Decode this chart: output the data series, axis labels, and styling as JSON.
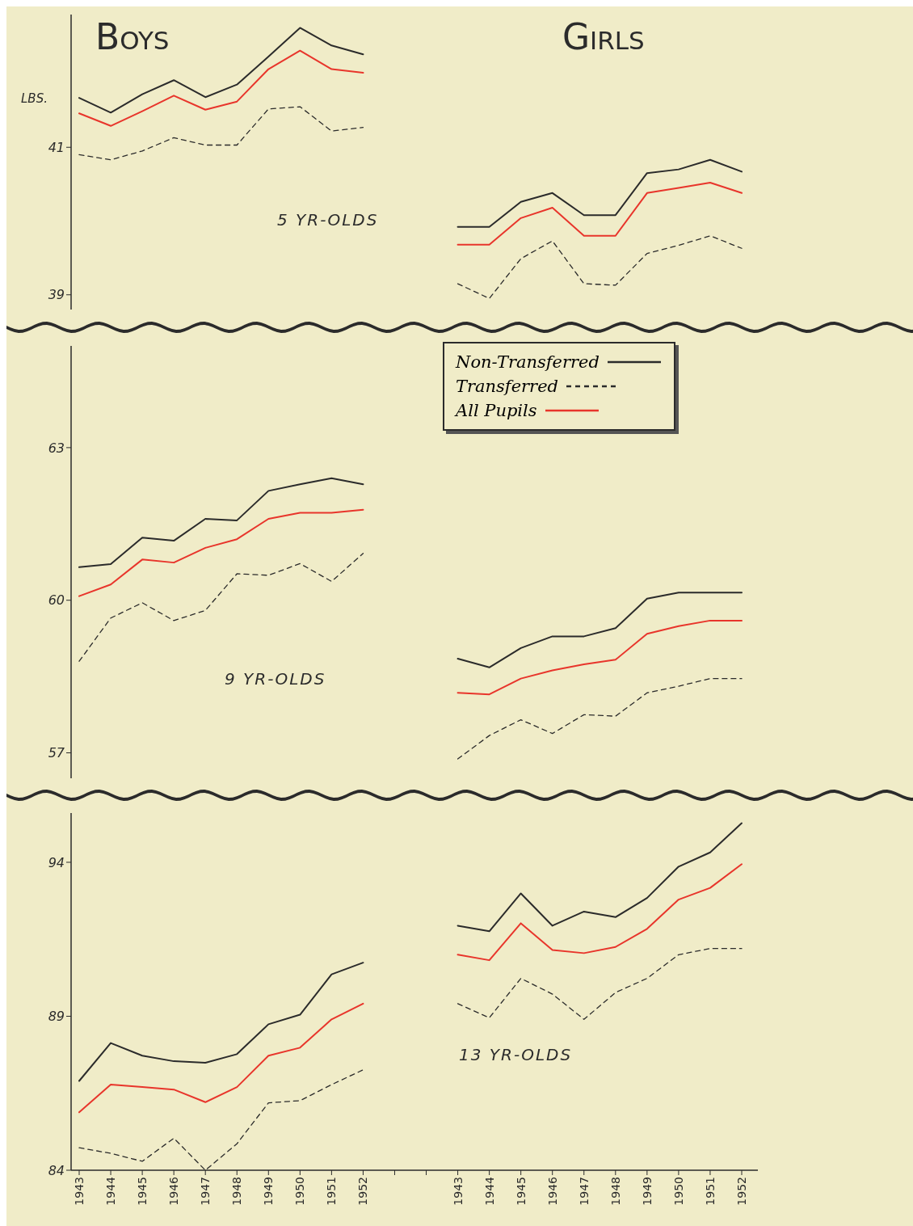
{
  "chart_data": [
    {
      "type": "line",
      "title": "Boys",
      "ylabel": "LBS.",
      "annotations": [
        "Girls",
        "5 YR-OLDS"
      ],
      "categories": [
        "1943",
        "1944",
        "1945",
        "1946",
        "1947",
        "1948",
        "1949",
        "1950",
        "1951",
        "1952",
        null,
        null,
        "1943",
        "1944",
        "1945",
        "1946",
        "1947",
        "1948",
        "1949",
        "1950",
        "1951",
        "1952"
      ],
      "ylim": [
        38.8,
        42.8
      ],
      "yticks": [
        39,
        41
      ],
      "tick_labels": "y",
      "series": [
        {
          "color": "#2b2b2b",
          "line_style": "solid",
          "values": [
            41.67,
            41.47,
            41.72,
            41.91,
            41.68,
            41.85,
            42.23,
            42.62,
            42.38,
            42.26,
            null,
            null,
            null,
            null,
            null,
            null,
            null,
            null,
            null,
            null,
            null,
            null
          ]
        },
        {
          "color": "#2b2b2b",
          "line_style": "dashed",
          "values": [
            40.9,
            40.83,
            40.95,
            41.13,
            41.03,
            41.03,
            41.52,
            41.55,
            41.22,
            41.27,
            null,
            null,
            null,
            null,
            null,
            null,
            null,
            null,
            null,
            null,
            null,
            null
          ]
        },
        {
          "color": "#e8352b",
          "line_style": "solid",
          "values": [
            41.46,
            41.29,
            41.49,
            41.7,
            41.51,
            41.62,
            42.06,
            42.31,
            42.06,
            42.01,
            null,
            null,
            null,
            null,
            null,
            null,
            null,
            null,
            null,
            null,
            null,
            null
          ]
        },
        {
          "color": "#2b2b2b",
          "line_style": "solid",
          "values": [
            null,
            null,
            null,
            null,
            null,
            null,
            null,
            null,
            null,
            null,
            null,
            null,
            39.92,
            39.92,
            40.26,
            40.38,
            40.08,
            40.08,
            40.65,
            40.7,
            40.83,
            40.67
          ]
        },
        {
          "color": "#2b2b2b",
          "line_style": "dashed",
          "values": [
            null,
            null,
            null,
            null,
            null,
            null,
            null,
            null,
            null,
            null,
            null,
            null,
            39.15,
            38.95,
            39.49,
            39.73,
            39.15,
            39.13,
            39.56,
            39.67,
            39.8,
            39.63
          ]
        },
        {
          "color": "#e8352b",
          "line_style": "solid",
          "values": [
            null,
            null,
            null,
            null,
            null,
            null,
            null,
            null,
            null,
            null,
            null,
            null,
            39.68,
            39.68,
            40.04,
            40.18,
            39.8,
            39.8,
            40.38,
            40.45,
            40.52,
            40.38
          ]
        }
      ]
    },
    {
      "type": "line",
      "annotations": [
        "9 YR-OLDS"
      ],
      "categories": [
        "1943",
        "1944",
        "1945",
        "1946",
        "1947",
        "1948",
        "1949",
        "1950",
        "1951",
        "1952",
        null,
        null,
        "1943",
        "1944",
        "1945",
        "1946",
        "1947",
        "1948",
        "1949",
        "1950",
        "1951",
        "1952"
      ],
      "ylim": [
        56.5,
        65
      ],
      "yticks": [
        57,
        60,
        63
      ],
      "tick_labels": "y",
      "legend": "top",
      "series": [
        {
          "name": "Non-Transferred",
          "color": "#2b2b2b",
          "line_style": "solid",
          "values": [
            60.65,
            60.71,
            61.23,
            61.17,
            61.6,
            61.57,
            62.15,
            62.28,
            62.4,
            62.28,
            null,
            null,
            null,
            null,
            null,
            null,
            null,
            null,
            null,
            null,
            null,
            null
          ]
        },
        {
          "name": "Transferred",
          "color": "#2b2b2b",
          "line_style": "dashed",
          "values": [
            58.8,
            59.65,
            59.95,
            59.6,
            59.8,
            60.52,
            60.49,
            60.72,
            60.37,
            60.92,
            null,
            null,
            null,
            null,
            null,
            null,
            null,
            null,
            null,
            null,
            null,
            null
          ]
        },
        {
          "name": "All Pupils",
          "color": "#e8352b",
          "line_style": "solid",
          "values": [
            60.08,
            60.31,
            60.8,
            60.74,
            61.03,
            61.2,
            61.6,
            61.72,
            61.72,
            61.78,
            null,
            null,
            null,
            null,
            null,
            null,
            null,
            null,
            null,
            null,
            null,
            null
          ]
        },
        {
          "color": "#2b2b2b",
          "line_style": "solid",
          "values": [
            null,
            null,
            null,
            null,
            null,
            null,
            null,
            null,
            null,
            null,
            null,
            null,
            58.85,
            58.68,
            59.06,
            59.29,
            59.29,
            59.45,
            60.03,
            60.15,
            60.15,
            60.15
          ]
        },
        {
          "color": "#2b2b2b",
          "line_style": "dashed",
          "values": [
            null,
            null,
            null,
            null,
            null,
            null,
            null,
            null,
            null,
            null,
            null,
            null,
            56.88,
            57.34,
            57.65,
            57.38,
            57.75,
            57.72,
            58.18,
            58.31,
            58.46,
            58.46
          ]
        },
        {
          "color": "#e8352b",
          "line_style": "solid",
          "values": [
            null,
            null,
            null,
            null,
            null,
            null,
            null,
            null,
            null,
            null,
            null,
            null,
            58.18,
            58.15,
            58.46,
            58.62,
            58.74,
            58.83,
            59.34,
            59.49,
            59.6,
            59.6
          ]
        }
      ]
    },
    {
      "type": "line",
      "annotations": [
        "13 YR-OLDS"
      ],
      "categories": [
        "1943",
        "1944",
        "1945",
        "1946",
        "1947",
        "1948",
        "1949",
        "1950",
        "1951",
        "1952",
        null,
        null,
        "1943",
        "1944",
        "1945",
        "1946",
        "1947",
        "1948",
        "1949",
        "1950",
        "1951",
        "1952"
      ],
      "ylim": [
        84,
        95.6
      ],
      "yticks": [
        84,
        89,
        94
      ],
      "series": [
        {
          "color": "#2b2b2b",
          "line_style": "solid",
          "values": [
            86.9,
            88.13,
            87.72,
            87.54,
            87.49,
            87.77,
            88.74,
            89.05,
            90.36,
            90.74,
            null,
            null,
            null,
            null,
            null,
            null,
            null,
            null,
            null,
            null,
            null,
            null
          ]
        },
        {
          "color": "#2b2b2b",
          "line_style": "dashed",
          "values": [
            84.73,
            84.55,
            84.29,
            85.04,
            84.0,
            84.86,
            86.19,
            86.26,
            86.78,
            87.26,
            null,
            null,
            null,
            null,
            null,
            null,
            null,
            null,
            null,
            null,
            null,
            null
          ]
        },
        {
          "color": "#e8352b",
          "line_style": "solid",
          "values": [
            85.88,
            86.78,
            86.7,
            86.62,
            86.21,
            86.7,
            87.72,
            87.98,
            88.9,
            89.41,
            null,
            null,
            null,
            null,
            null,
            null,
            null,
            null,
            null,
            null,
            null,
            null
          ]
        },
        {
          "color": "#2b2b2b",
          "line_style": "solid",
          "values": [
            null,
            null,
            null,
            null,
            null,
            null,
            null,
            null,
            null,
            null,
            null,
            null,
            91.94,
            91.76,
            92.99,
            91.94,
            92.4,
            92.22,
            92.84,
            93.86,
            94.32,
            95.27
          ]
        },
        {
          "color": "#2b2b2b",
          "line_style": "dashed",
          "values": [
            null,
            null,
            null,
            null,
            null,
            null,
            null,
            null,
            null,
            null,
            null,
            null,
            89.41,
            88.95,
            90.23,
            89.72,
            88.9,
            89.77,
            90.23,
            91.0,
            91.2,
            91.2
          ]
        },
        {
          "color": "#e8352b",
          "line_style": "solid",
          "values": [
            null,
            null,
            null,
            null,
            null,
            null,
            null,
            null,
            null,
            null,
            null,
            null,
            91.0,
            90.82,
            92.02,
            91.15,
            91.05,
            91.25,
            91.84,
            92.79,
            93.17,
            93.94
          ]
        }
      ]
    }
  ]
}
